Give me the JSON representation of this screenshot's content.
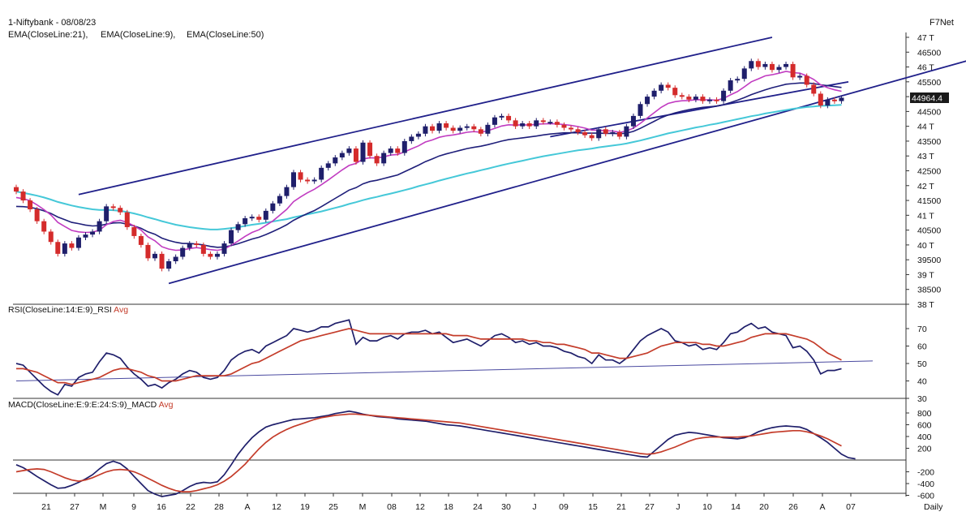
{
  "header": {
    "title": "1-Niftybank - 08/08/23",
    "brand": "F7Net",
    "ema_legend": [
      {
        "label": "EMA(CloseLine:21),",
        "color": "#1f1f7a"
      },
      {
        "label": "EMA(CloseLine:9),",
        "color": "#c13cc1"
      },
      {
        "label": "EMA(CloseLine:50)",
        "color": "#45c8d8"
      }
    ],
    "last_price_label": "44964.4"
  },
  "chart_data": [
    {
      "type": "candlestick",
      "title": "1-Niftybank - 08/08/23",
      "xlabel": "Daily",
      "x_tick_labels": [
        "21",
        "27",
        "M",
        "9",
        "16",
        "22",
        "28",
        "A",
        "12",
        "19",
        "25",
        "M",
        "08",
        "12",
        "18",
        "24",
        "30",
        "J",
        "09",
        "15",
        "21",
        "27",
        "J",
        "10",
        "14",
        "20",
        "26",
        "A",
        "07"
      ],
      "y_tick_labels": [
        "47 T",
        "46500",
        "46 T",
        "45500",
        "45 T",
        "44500",
        "44 T",
        "43500",
        "43 T",
        "42500",
        "42 T",
        "41500",
        "41 T",
        "40500",
        "40 T",
        "39500",
        "39 T",
        "38500",
        "38 T"
      ],
      "ylim": [
        38000,
        47000
      ],
      "up_color": "#1f1f6b",
      "down_color": "#d42b2b",
      "close": [
        41800,
        41500,
        41200,
        40800,
        40450,
        40100,
        39700,
        40050,
        39900,
        40250,
        40350,
        40450,
        40800,
        41300,
        41250,
        41100,
        40600,
        40300,
        40000,
        39550,
        39700,
        39200,
        39450,
        39600,
        39900,
        40050,
        40000,
        39700,
        39600,
        39700,
        40050,
        40500,
        40700,
        40900,
        40950,
        40850,
        41150,
        41400,
        41650,
        41950,
        42450,
        42200,
        42150,
        42200,
        42600,
        42750,
        42950,
        43100,
        43250,
        42800,
        43450,
        43000,
        42750,
        43100,
        43250,
        43100,
        43500,
        43650,
        43750,
        44000,
        43850,
        44100,
        43950,
        43850,
        43950,
        44000,
        43900,
        43750,
        44050,
        44300,
        44350,
        44200,
        44000,
        44100,
        44000,
        44200,
        44150,
        44150,
        44050,
        43950,
        43900,
        43800,
        43700,
        43600,
        43900,
        43750,
        43800,
        43650,
        44000,
        44350,
        44750,
        45000,
        45200,
        45400,
        45300,
        45050,
        45000,
        44900,
        45000,
        44850,
        44900,
        44850,
        45200,
        45550,
        45600,
        45950,
        46200,
        46000,
        46100,
        45900,
        46000,
        46100,
        45650,
        45700,
        45400,
        45100,
        44700,
        44900,
        44850,
        44964
      ],
      "ema9": [
        41600,
        41560,
        41490,
        41350,
        41190,
        41010,
        40760,
        40620,
        40490,
        40440,
        40420,
        40430,
        40500,
        40680,
        40790,
        40830,
        40760,
        40640,
        40500,
        40270,
        40140,
        39940,
        39860,
        39820,
        39830,
        39880,
        39910,
        39880,
        39840,
        39820,
        39860,
        39990,
        40130,
        40290,
        40420,
        40510,
        40660,
        40810,
        41000,
        41200,
        41460,
        41620,
        41760,
        41880,
        42030,
        42190,
        42360,
        42530,
        42680,
        42750,
        42900,
        42940,
        42930,
        42970,
        43030,
        43050,
        43140,
        43240,
        43340,
        43470,
        43540,
        43630,
        43680,
        43710,
        43750,
        43800,
        43820,
        43800,
        43850,
        43930,
        44010,
        44050,
        44040,
        44050,
        44040,
        44070,
        44080,
        44090,
        44080,
        44060,
        44030,
        43990,
        43940,
        43870,
        43870,
        43850,
        43840,
        43800,
        43840,
        43940,
        44100,
        44280,
        44460,
        44640,
        44770,
        44830,
        44860,
        44870,
        44900,
        44890,
        44890,
        44880,
        44940,
        45060,
        45170,
        45330,
        45500,
        45600,
        45700,
        45740,
        45790,
        45850,
        45810,
        45790,
        45700,
        45580,
        45400,
        45300,
        45230,
        45180
      ],
      "ema21": [
        41300,
        41290,
        41270,
        41220,
        41150,
        41060,
        40940,
        40850,
        40760,
        40720,
        40670,
        40640,
        40650,
        40700,
        40740,
        40750,
        40700,
        40640,
        40560,
        40440,
        40360,
        40230,
        40150,
        40090,
        40050,
        40050,
        40030,
        40000,
        39950,
        39920,
        39930,
        39980,
        40040,
        40120,
        40200,
        40260,
        40350,
        40450,
        40560,
        40680,
        40830,
        40950,
        41060,
        41160,
        41290,
        41430,
        41570,
        41710,
        41850,
        41930,
        42060,
        42140,
        42180,
        42240,
        42300,
        42360,
        42470,
        42580,
        42690,
        42810,
        42900,
        43000,
        43070,
        43130,
        43190,
        43250,
        43290,
        43330,
        43380,
        43440,
        43500,
        43550,
        43580,
        43610,
        43640,
        43670,
        43710,
        43740,
        43760,
        43780,
        43780,
        43780,
        43770,
        43770,
        43770,
        43760,
        43760,
        43750,
        43770,
        43830,
        43930,
        44050,
        44170,
        44290,
        44380,
        44450,
        44510,
        44560,
        44600,
        44640,
        44660,
        44680,
        44730,
        44800,
        44880,
        44970,
        45070,
        45150,
        45230,
        45300,
        45360,
        45420,
        45440,
        45460,
        45460,
        45440,
        45400,
        45370,
        45340,
        45310
      ],
      "ema50": [
        41800,
        41760,
        41710,
        41660,
        41600,
        41530,
        41450,
        41390,
        41330,
        41280,
        41240,
        41200,
        41180,
        41180,
        41170,
        41150,
        41110,
        41060,
        41000,
        40930,
        40870,
        40800,
        40740,
        40680,
        40640,
        40600,
        40570,
        40540,
        40520,
        40520,
        40540,
        40570,
        40600,
        40640,
        40680,
        40710,
        40750,
        40790,
        40830,
        40870,
        40930,
        40980,
        41030,
        41080,
        41130,
        41190,
        41250,
        41310,
        41380,
        41440,
        41510,
        41570,
        41620,
        41680,
        41730,
        41790,
        41850,
        41910,
        41980,
        42040,
        42100,
        42170,
        42230,
        42290,
        42350,
        42410,
        42460,
        42520,
        42570,
        42630,
        42690,
        42740,
        42790,
        42840,
        42890,
        42940,
        42990,
        43030,
        43070,
        43110,
        43150,
        43190,
        43220,
        43250,
        43290,
        43320,
        43350,
        43380,
        43420,
        43470,
        43520,
        43580,
        43640,
        43700,
        43760,
        43810,
        43860,
        43910,
        43960,
        44000,
        44050,
        44090,
        44140,
        44190,
        44240,
        44290,
        44340,
        44380,
        44430,
        44470,
        44510,
        44550,
        44590,
        44620,
        44650,
        44670,
        44690,
        44700,
        44710,
        44720
      ],
      "trendlines": {
        "upper_channel": {
          "from": [
            9,
            41700
          ],
          "to": [
            109,
            47000
          ]
        },
        "lower_channel": {
          "from": [
            22,
            38700
          ],
          "to": [
            137,
            46200
          ]
        },
        "rising_support": {
          "from": [
            77,
            43650
          ],
          "to": [
            120,
            45500
          ]
        }
      }
    },
    {
      "type": "line",
      "title": "RSI(CloseLine:14:E:9)_RSI Avg",
      "ylim": [
        30,
        80
      ],
      "y_tick_labels": [
        "70",
        "60",
        "50",
        "40",
        "30"
      ],
      "series": [
        {
          "name": "RSI",
          "color": "#1f1f6b",
          "values": [
            50,
            49,
            45,
            41,
            37,
            34,
            32,
            38,
            37,
            42,
            44,
            45,
            51,
            56,
            55,
            53,
            48,
            44,
            41,
            37,
            38,
            36,
            39,
            41,
            44,
            46,
            45,
            42,
            41,
            42,
            46,
            52,
            55,
            57,
            58,
            56,
            60,
            62,
            64,
            66,
            70,
            69,
            68,
            69,
            71,
            71,
            73,
            74,
            75,
            61,
            65,
            63,
            63,
            65,
            66,
            64,
            67,
            68,
            68,
            69,
            67,
            68,
            65,
            62,
            63,
            64,
            62,
            60,
            63,
            66,
            67,
            65,
            62,
            63,
            61,
            62,
            60,
            60,
            59,
            57,
            56,
            54,
            53,
            50,
            55,
            52,
            52,
            50,
            53,
            58,
            63,
            66,
            68,
            70,
            68,
            63,
            62,
            60,
            61,
            58,
            59,
            58,
            62,
            67,
            68,
            71,
            73,
            70,
            71,
            68,
            67,
            66,
            59,
            60,
            57,
            52,
            44,
            46,
            46,
            47
          ]
        },
        {
          "name": "Avg",
          "color": "#c43c2a",
          "values": [
            47,
            47,
            46,
            45,
            43,
            41,
            39,
            39,
            38,
            39,
            40,
            41,
            42,
            44,
            46,
            47,
            47,
            46,
            45,
            43,
            42,
            40,
            40,
            40,
            41,
            42,
            43,
            43,
            43,
            43,
            43,
            44,
            46,
            48,
            50,
            51,
            53,
            55,
            57,
            59,
            61,
            63,
            64,
            65,
            66,
            67,
            68,
            69,
            70,
            69,
            68,
            67,
            67,
            67,
            67,
            67,
            67,
            67,
            67,
            67,
            67,
            67,
            67,
            66,
            66,
            66,
            65,
            64,
            64,
            64,
            64,
            64,
            64,
            64,
            63,
            63,
            62,
            62,
            61,
            61,
            60,
            59,
            58,
            56,
            56,
            55,
            54,
            53,
            53,
            54,
            55,
            56,
            58,
            60,
            61,
            62,
            62,
            62,
            62,
            61,
            61,
            60,
            60,
            61,
            62,
            63,
            65,
            66,
            67,
            67,
            67,
            67,
            66,
            65,
            64,
            62,
            59,
            56,
            54,
            52
          ]
        }
      ],
      "trendline": {
        "from": [
          0,
          40
        ],
        "to": [
          120,
          51
        ]
      }
    },
    {
      "type": "line",
      "title": "MACD(CloseLine:E:9:E:24:S:9)_MACD Avg",
      "ylim": [
        -650,
        900
      ],
      "y_tick_labels": [
        "800",
        "600",
        "400",
        "200",
        "-200",
        "-400",
        "-600"
      ],
      "series": [
        {
          "name": "MACD",
          "color": "#1f1f6b",
          "values": [
            -80,
            -130,
            -200,
            -280,
            -350,
            -420,
            -480,
            -470,
            -430,
            -380,
            -320,
            -250,
            -150,
            -60,
            -20,
            -60,
            -150,
            -280,
            -400,
            -520,
            -580,
            -620,
            -600,
            -580,
            -520,
            -450,
            -400,
            -380,
            -390,
            -370,
            -250,
            -80,
            100,
            250,
            380,
            480,
            560,
            600,
            630,
            660,
            690,
            700,
            710,
            720,
            740,
            760,
            790,
            810,
            830,
            810,
            780,
            760,
            740,
            730,
            720,
            700,
            690,
            680,
            670,
            660,
            640,
            620,
            600,
            590,
            580,
            560,
            540,
            520,
            500,
            480,
            460,
            440,
            420,
            400,
            380,
            360,
            340,
            320,
            300,
            280,
            260,
            240,
            220,
            200,
            180,
            160,
            140,
            120,
            100,
            80,
            60,
            50,
            150,
            250,
            350,
            420,
            450,
            470,
            460,
            440,
            420,
            400,
            380,
            370,
            360,
            380,
            420,
            480,
            520,
            550,
            570,
            580,
            570,
            560,
            520,
            450,
            380,
            300,
            200,
            100,
            40,
            20
          ]
        },
        {
          "name": "Avg",
          "color": "#c43c2a",
          "values": [
            -200,
            -180,
            -160,
            -150,
            -160,
            -200,
            -250,
            -300,
            -340,
            -360,
            -340,
            -300,
            -250,
            -200,
            -170,
            -160,
            -170,
            -200,
            -250,
            -310,
            -370,
            -430,
            -480,
            -520,
            -540,
            -540,
            -520,
            -490,
            -460,
            -420,
            -360,
            -280,
            -180,
            -70,
            60,
            190,
            300,
            390,
            460,
            520,
            570,
            610,
            650,
            690,
            720,
            740,
            760,
            770,
            780,
            780,
            770,
            760,
            750,
            740,
            730,
            720,
            710,
            700,
            690,
            680,
            670,
            660,
            650,
            640,
            630,
            610,
            590,
            570,
            550,
            530,
            510,
            490,
            470,
            450,
            430,
            410,
            390,
            370,
            350,
            330,
            310,
            290,
            270,
            250,
            230,
            210,
            190,
            170,
            150,
            130,
            110,
            100,
            110,
            140,
            180,
            220,
            270,
            320,
            360,
            380,
            390,
            390,
            390,
            390,
            390,
            400,
            410,
            430,
            450,
            470,
            480,
            490,
            500,
            500,
            480,
            450,
            410,
            360,
            300,
            240
          ]
        }
      ],
      "zero_line": 0
    }
  ],
  "bottom_axis_label": "Daily"
}
